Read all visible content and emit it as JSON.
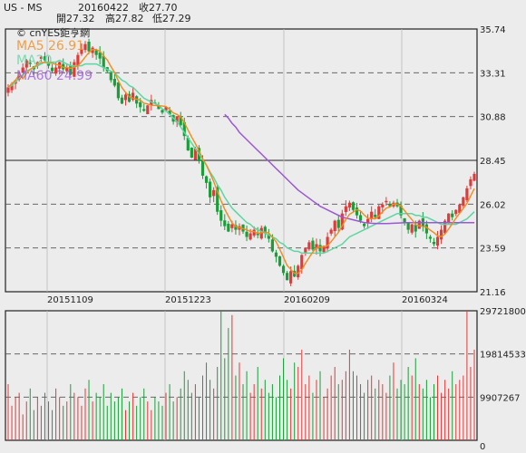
{
  "header": {
    "ticker": "US - MS",
    "date": "20160422",
    "close": "收27.70",
    "open": "開27.32",
    "high": "高27.82",
    "low": "低27.29",
    "source": "© cnYES鉅亨網"
  },
  "legend": {
    "ma5": "MA5 26.91",
    "ma20": "MA20",
    "ma60": "MA60 24.99"
  },
  "colors": {
    "up": "#e03a3a",
    "down": "#1a9e3a",
    "ma5": "#f08c1e",
    "ma20": "#5cd6a0",
    "ma60": "#9b57d6",
    "bg": "#ececec",
    "frame": "#222222"
  },
  "chart_data": [
    {
      "type": "candlestick",
      "title": "",
      "x_ticks": [
        "20151109",
        "20151223",
        "20160209",
        "20160324"
      ],
      "y_ticks": [
        "35.74",
        "33.31",
        "30.88",
        "28.45",
        "26.02",
        "23.59",
        "21.16"
      ],
      "ylim": [
        21.16,
        35.74
      ],
      "grid": true,
      "last_bar": {
        "date": "20160422",
        "open": 27.32,
        "high": 27.82,
        "low": 27.29,
        "close": 27.7
      },
      "ma": {
        "MA5": 26.91,
        "MA60": 24.99
      },
      "close_series": [
        32.5,
        32.7,
        32.9,
        33.2,
        33.6,
        34.0,
        33.8,
        33.5,
        33.9,
        34.2,
        34.0,
        33.7,
        33.4,
        33.6,
        33.9,
        33.5,
        33.6,
        33.2,
        33.9,
        34.3,
        34.6,
        34.9,
        34.5,
        34.7,
        34.3,
        34.1,
        33.6,
        33.4,
        32.9,
        32.6,
        31.9,
        31.6,
        32.1,
        31.7,
        32.2,
        31.6,
        31.4,
        31.2,
        31.5,
        31.8,
        31.6,
        31.3,
        31.1,
        31.4,
        31.0,
        30.6,
        30.9,
        30.4,
        29.8,
        29.0,
        28.6,
        29.1,
        28.4,
        27.6,
        27.2,
        26.4,
        26.8,
        25.6,
        25.1,
        24.8,
        24.5,
        24.9,
        24.6,
        24.8,
        24.5,
        24.2,
        24.4,
        24.6,
        24.3,
        24.7,
        24.4,
        24.1,
        23.4,
        23.1,
        22.6,
        22.2,
        21.8,
        22.3,
        22.0,
        22.6,
        23.2,
        23.6,
        23.9,
        23.5,
        23.8,
        23.4,
        23.7,
        24.2,
        24.6,
        25.1,
        24.7,
        25.5,
        25.9,
        26.1,
        25.7,
        25.4,
        25.1,
        24.8,
        25.2,
        25.6,
        25.3,
        25.9,
        26.0,
        26.2,
        25.9,
        26.1,
        25.9,
        25.4,
        25.0,
        24.6,
        24.9,
        24.5,
        25.1,
        24.8,
        24.4,
        24.1,
        23.8,
        24.2,
        24.6,
        25.1,
        25.5,
        25.3,
        25.7,
        26.0,
        26.4,
        26.9,
        27.4,
        27.7
      ],
      "ma20_series": [
        32.5,
        32.6,
        32.8,
        33.0,
        33.2,
        33.4,
        33.5,
        33.6,
        33.7,
        33.8,
        33.9,
        33.9,
        33.9,
        33.9,
        34.0,
        33.9,
        33.8,
        33.7,
        33.7,
        33.7,
        33.7,
        33.8,
        33.8,
        33.8,
        33.8,
        33.7,
        33.6,
        33.5,
        33.4,
        33.3,
        33.1,
        32.9,
        32.8,
        32.6,
        32.5,
        32.3,
        32.1,
        31.9,
        31.8,
        31.7,
        31.6,
        31.5,
        31.3,
        31.2,
        31.0,
        30.8,
        30.6,
        30.3,
        30.0,
        29.7,
        29.4,
        29.1,
        28.8,
        28.5,
        28.2,
        27.8,
        27.5,
        27.1,
        26.8,
        26.4,
        26.1,
        25.8,
        25.6,
        25.4,
        25.2,
        25.0,
        24.9,
        24.7,
        24.6,
        24.5,
        24.4,
        24.3,
        24.2,
        24.1,
        23.9,
        23.8,
        23.6,
        23.5,
        23.4,
        23.4,
        23.3,
        23.3,
        23.3,
        23.3,
        23.3,
        23.3,
        23.3,
        23.4,
        23.5,
        23.6,
        23.7,
        23.8,
        24.0,
        24.2,
        24.3,
        24.4,
        24.5,
        24.6,
        24.7,
        24.8,
        24.9,
        25.0,
        25.1,
        25.2,
        25.3,
        25.4,
        25.5,
        25.5,
        25.5,
        25.5,
        25.5,
        25.4,
        25.4,
        25.3,
        25.3,
        25.2,
        25.1,
        25.0,
        24.9,
        24.9,
        24.9,
        24.9,
        24.9,
        25.0,
        25.1,
        25.2,
        25.4,
        25.6
      ],
      "ma60_series": [
        null,
        null,
        null,
        null,
        null,
        null,
        null,
        null,
        null,
        null,
        null,
        null,
        null,
        null,
        null,
        null,
        null,
        null,
        null,
        null,
        null,
        null,
        null,
        null,
        null,
        null,
        null,
        null,
        null,
        null,
        null,
        null,
        null,
        null,
        null,
        null,
        null,
        null,
        null,
        null,
        null,
        null,
        null,
        null,
        null,
        null,
        null,
        null,
        null,
        null,
        null,
        null,
        null,
        null,
        null,
        null,
        null,
        null,
        null,
        31.0,
        30.8,
        30.5,
        30.3,
        30.0,
        29.8,
        29.6,
        29.4,
        29.2,
        29.0,
        28.8,
        28.6,
        28.4,
        28.2,
        28.0,
        27.8,
        27.6,
        27.4,
        27.2,
        27.0,
        26.8,
        26.65,
        26.5,
        26.35,
        26.2,
        26.05,
        25.9,
        25.8,
        25.7,
        25.6,
        25.5,
        25.4,
        25.3,
        25.25,
        25.2,
        25.15,
        25.1,
        25.05,
        25.0,
        24.98,
        24.96,
        24.95,
        24.94,
        24.94,
        24.94,
        24.95,
        24.96,
        24.97,
        24.98,
        24.99,
        24.99,
        24.99,
        24.99,
        24.99,
        24.99,
        24.99,
        24.99,
        24.99,
        24.99,
        24.99,
        24.99,
        24.99,
        24.99,
        24.99,
        24.99,
        24.99,
        24.99,
        24.99,
        24.99
      ]
    },
    {
      "type": "bar",
      "title": "",
      "y_ticks": [
        "29721800",
        "19814533",
        "9907267",
        "0"
      ],
      "ylim": [
        0,
        29721800
      ],
      "grid": true,
      "volume_series": [
        13,
        8,
        10,
        11,
        6,
        9,
        12,
        7,
        10,
        8,
        11,
        9,
        7,
        12,
        10,
        8,
        9,
        13,
        11,
        10,
        8,
        12,
        14,
        9,
        11,
        10,
        13,
        8,
        11,
        9,
        10,
        12,
        7,
        9,
        11,
        8,
        10,
        12,
        9,
        7,
        10,
        9,
        8,
        11,
        13,
        9,
        10,
        12,
        16,
        14,
        11,
        13,
        10,
        15,
        18,
        14,
        12,
        17,
        30,
        19,
        26,
        29,
        15,
        18,
        13,
        16,
        11,
        13,
        17,
        12,
        14,
        11,
        13,
        10,
        15,
        19,
        14,
        12,
        18,
        17,
        21,
        13,
        15,
        11,
        14,
        16,
        10,
        12,
        15,
        17,
        13,
        14,
        16,
        21,
        16,
        15,
        13,
        11,
        14,
        15,
        12,
        14,
        13,
        11,
        15,
        18,
        12,
        14,
        13,
        17,
        15,
        19,
        13,
        12,
        14,
        10,
        13,
        15,
        11,
        14,
        12,
        16,
        13,
        14,
        15,
        30,
        17,
        21
      ]
    }
  ]
}
